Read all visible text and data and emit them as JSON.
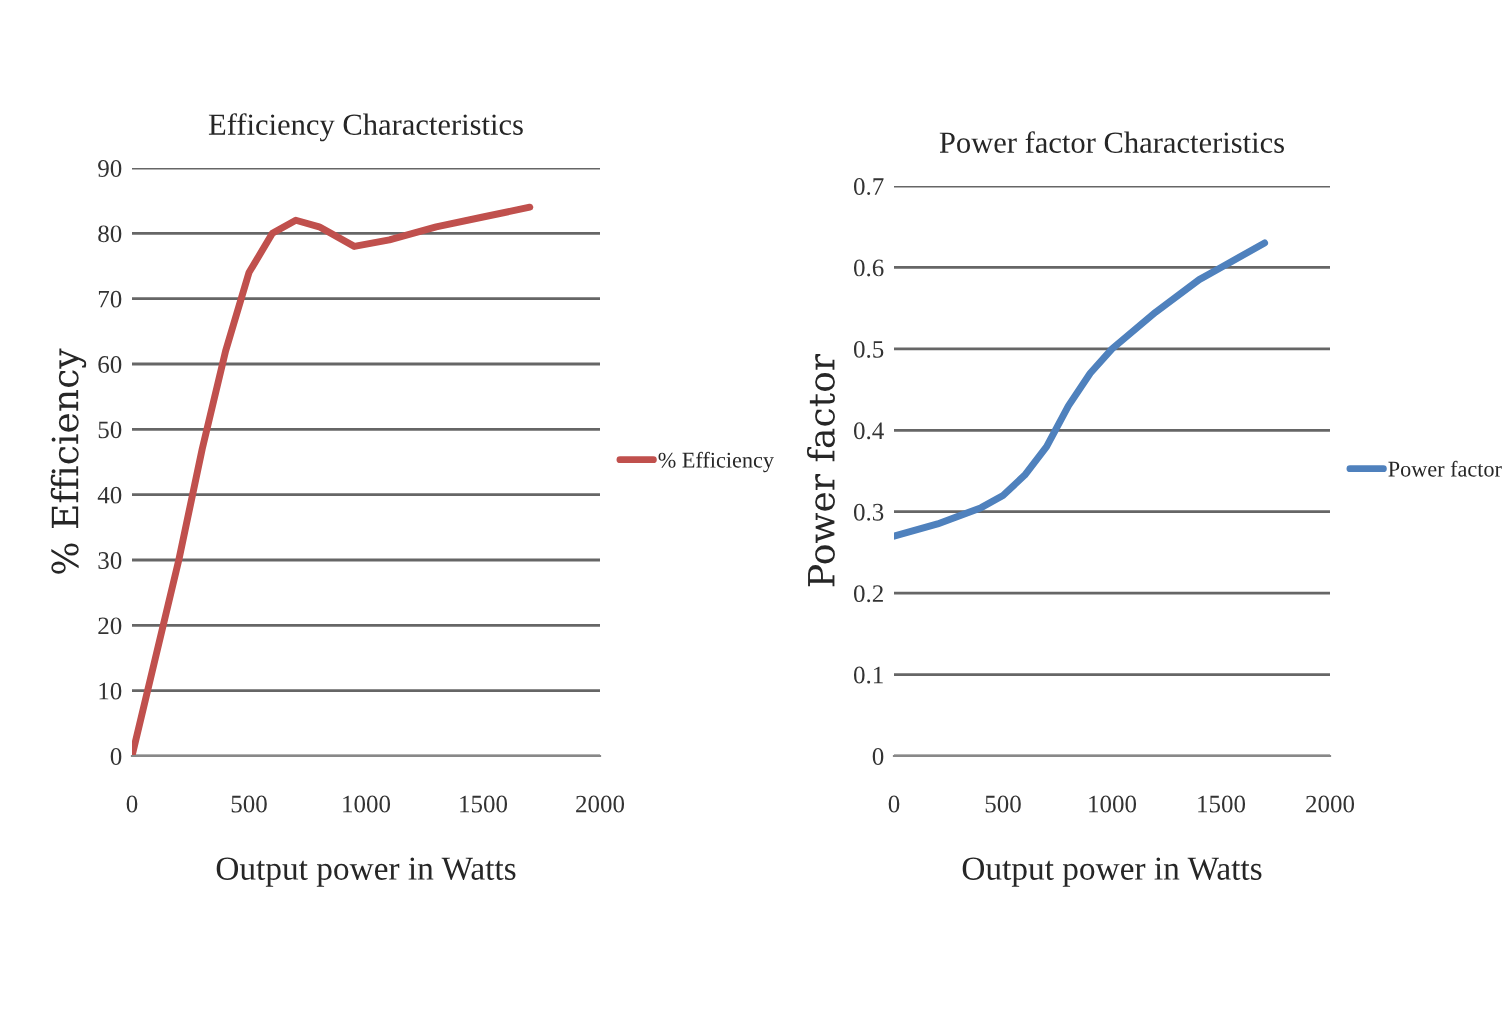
{
  "chart_data": [
    {
      "type": "line",
      "title": "Efficiency Characteristics",
      "xlabel": "Output power in Watts",
      "ylabel": "% Efficiency",
      "x": [
        0,
        100,
        200,
        300,
        400,
        500,
        600,
        700,
        800,
        950,
        1100,
        1300,
        1500,
        1700
      ],
      "series": [
        {
          "name": "% Efficiency",
          "color": "#c0504d",
          "values": [
            0,
            15,
            30,
            47,
            62,
            74,
            80,
            82,
            81,
            78,
            79,
            81,
            82.5,
            84
          ]
        }
      ],
      "xlim": [
        0,
        2000
      ],
      "xticks": [
        0,
        500,
        1000,
        1500,
        2000
      ],
      "ylim": [
        0,
        90
      ],
      "yticks": [
        0,
        10,
        20,
        30,
        40,
        50,
        60,
        70,
        80,
        90
      ],
      "grid": "y",
      "legend": "right",
      "marker": "none",
      "line_style": "solid"
    },
    {
      "type": "line",
      "title": "Power factor Characteristics",
      "xlabel": "Output power in Watts",
      "ylabel": "Power factor",
      "x": [
        0,
        200,
        400,
        500,
        600,
        700,
        800,
        900,
        1000,
        1200,
        1400,
        1500,
        1700
      ],
      "series": [
        {
          "name": "Power factor",
          "color": "#4f81bd",
          "values": [
            0.27,
            0.285,
            0.305,
            0.32,
            0.345,
            0.38,
            0.43,
            0.47,
            0.5,
            0.545,
            0.585,
            0.6,
            0.63
          ]
        }
      ],
      "xlim": [
        0,
        2000
      ],
      "xticks": [
        0,
        500,
        1000,
        1500,
        2000
      ],
      "ylim": [
        0,
        0.7
      ],
      "yticks": [
        0,
        0.1,
        0.2,
        0.3,
        0.4,
        0.5,
        0.6,
        0.7
      ],
      "grid": "y",
      "legend": "right",
      "marker": "none",
      "line_style": "solid"
    }
  ]
}
